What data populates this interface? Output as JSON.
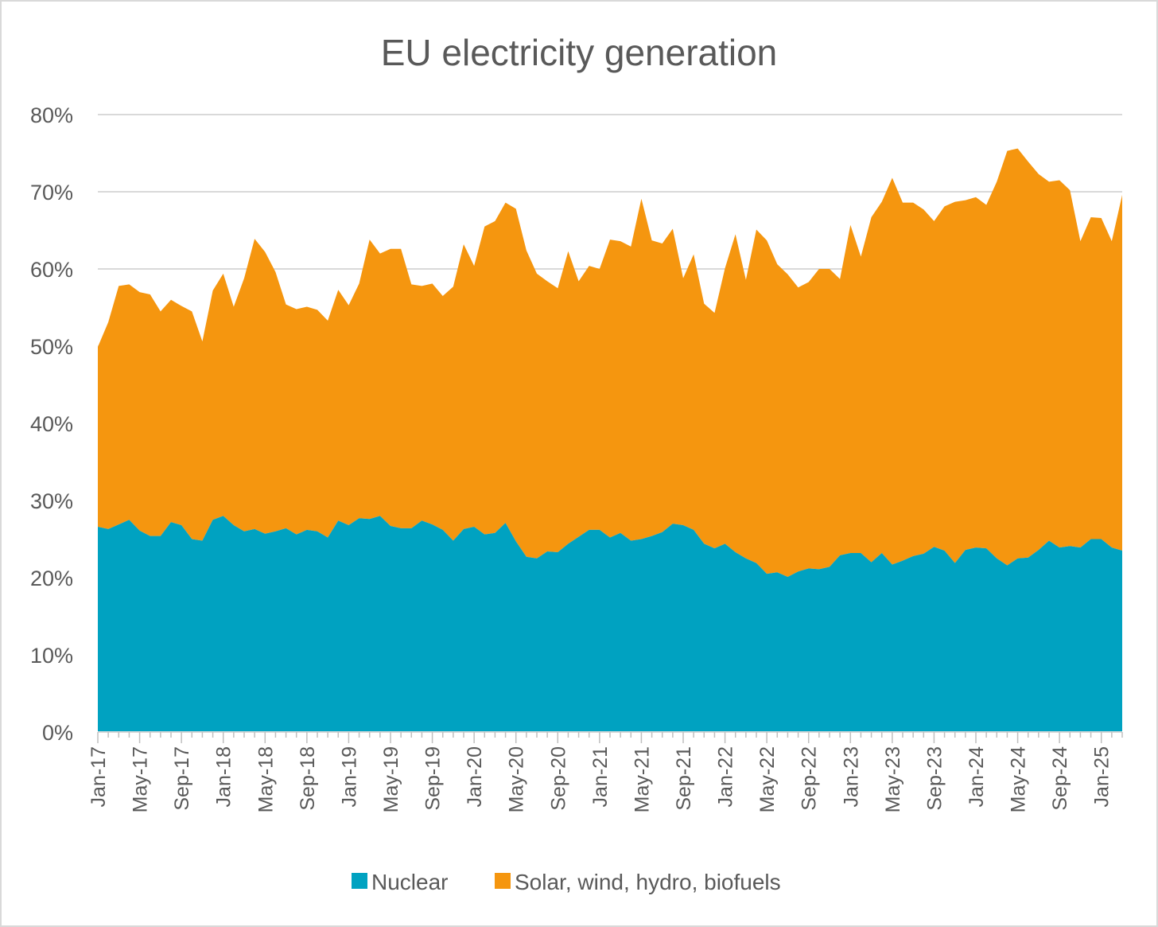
{
  "chart_data": {
    "type": "area",
    "stacked": true,
    "title": "EU electricity generation",
    "xlabel": "",
    "ylabel": "",
    "ylim": [
      0,
      80
    ],
    "y_ticks": [
      "0%",
      "10%",
      "20%",
      "30%",
      "40%",
      "50%",
      "60%",
      "70%",
      "80%"
    ],
    "x_tick_labels": [
      "Jan-17",
      "May-17",
      "Sep-17",
      "Jan-18",
      "May-18",
      "Sep-18",
      "Jan-19",
      "May-19",
      "Sep-19",
      "Jan-20",
      "May-20",
      "Sep-20",
      "Jan-21",
      "May-21",
      "Sep-21",
      "Jan-22",
      "May-22",
      "Sep-22",
      "Jan-23",
      "May-23",
      "Sep-23",
      "Jan-24",
      "May-24",
      "Sep-24",
      "Jan-25"
    ],
    "x_start": "Jan-17",
    "x_end": "Jul-25",
    "grid": true,
    "legend": "bottom",
    "colors": {
      "Nuclear": "#00a2c1",
      "Solar, wind, hydro, biofuels": "#f5960f",
      "grid": "#d9d9d9",
      "text": "#595959"
    },
    "series": [
      {
        "name": "Nuclear",
        "values": [
          26.6,
          26.3,
          26.9,
          27.5,
          26.1,
          25.4,
          25.4,
          27.2,
          26.8,
          25.0,
          24.8,
          27.5,
          28.0,
          26.8,
          26.0,
          26.3,
          25.7,
          26.0,
          26.4,
          25.6,
          26.2,
          26.0,
          25.2,
          27.4,
          26.8,
          27.7,
          27.6,
          28.0,
          26.7,
          26.4,
          26.4,
          27.4,
          26.9,
          26.2,
          24.8,
          26.3,
          26.6,
          25.6,
          25.8,
          27.1,
          24.7,
          22.7,
          22.5,
          23.4,
          23.3,
          24.4,
          25.3,
          26.2,
          26.2,
          25.2,
          25.8,
          24.8,
          25.0,
          25.4,
          25.9,
          27.0,
          26.8,
          26.2,
          24.4,
          23.8,
          24.4,
          23.3,
          22.5,
          21.9,
          20.5,
          20.7,
          20.1,
          20.8,
          21.2,
          21.1,
          21.4,
          22.9,
          23.2,
          23.2,
          22.0,
          23.2,
          21.7,
          22.2,
          22.8,
          23.1,
          24.0,
          23.5,
          21.9,
          23.6,
          23.9,
          23.8,
          22.5,
          21.6,
          22.5,
          22.6,
          23.6,
          24.8,
          23.9,
          24.1,
          23.9,
          25.0,
          25.0,
          23.9,
          23.5
        ]
      },
      {
        "name": "Solar, wind, hydro, biofuels",
        "values": [
          23.3,
          26.8,
          30.9,
          30.5,
          30.9,
          31.3,
          29.1,
          28.8,
          28.4,
          29.5,
          25.8,
          29.7,
          31.4,
          28.3,
          32.8,
          37.6,
          36.5,
          33.6,
          29.0,
          29.2,
          28.9,
          28.7,
          28.1,
          29.9,
          28.5,
          30.4,
          36.2,
          34.0,
          35.9,
          36.2,
          31.6,
          30.4,
          31.2,
          30.3,
          32.9,
          36.9,
          33.8,
          39.9,
          40.4,
          41.5,
          43.1,
          39.7,
          36.9,
          35.0,
          34.2,
          37.9,
          33.1,
          34.2,
          33.8,
          38.6,
          37.8,
          38.1,
          44.1,
          38.3,
          37.4,
          38.2,
          32.0,
          35.7,
          31.1,
          30.5,
          35.7,
          41.2,
          36.1,
          43.2,
          43.2,
          39.9,
          39.2,
          36.8,
          37.1,
          38.9,
          38.6,
          35.8,
          42.5,
          38.4,
          44.7,
          45.5,
          50.1,
          46.4,
          45.8,
          44.6,
          42.2,
          44.6,
          46.8,
          45.3,
          45.4,
          44.5,
          48.8,
          53.7,
          53.1,
          51.3,
          48.7,
          46.5,
          47.6,
          46.1,
          39.7,
          41.7,
          41.6,
          39.7,
          46.1
        ]
      }
    ]
  },
  "legend": {
    "items": [
      {
        "label": "Nuclear",
        "color": "#00a2c1"
      },
      {
        "label": "Solar, wind, hydro, biofuels",
        "color": "#f5960f"
      }
    ]
  }
}
